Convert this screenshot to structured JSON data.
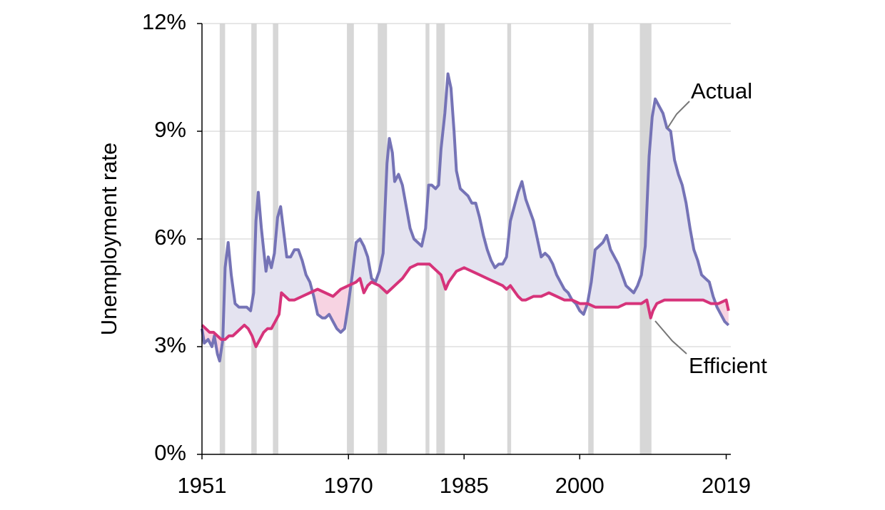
{
  "chart_data": {
    "type": "line",
    "ylabel": "Unemployment rate",
    "xlim": [
      1951,
      2019.6
    ],
    "ylim": [
      0,
      12
    ],
    "xticks": [
      1951,
      1970,
      1985,
      2000,
      2019
    ],
    "yticks": [
      {
        "value": 0,
        "label": "0%"
      },
      {
        "value": 3,
        "label": "3%"
      },
      {
        "value": 6,
        "label": "6%"
      },
      {
        "value": 9,
        "label": "9%"
      },
      {
        "value": 12,
        "label": "12%"
      }
    ],
    "grid": true,
    "recession_color": "#d7d7d7",
    "recessions": [
      [
        1953.3,
        1954.0
      ],
      [
        1957.4,
        1958.1
      ],
      [
        1960.2,
        1960.9
      ],
      [
        1969.8,
        1970.7
      ],
      [
        1973.8,
        1975.0
      ],
      [
        1980.0,
        1980.5
      ],
      [
        1981.4,
        1982.5
      ],
      [
        1990.6,
        1991.1
      ],
      [
        2001.1,
        2001.8
      ],
      [
        2007.8,
        2009.3
      ]
    ],
    "series": [
      {
        "name": "Actual",
        "color": "#7573b6",
        "fill": "#e4e3f0",
        "x": [
          1951.0,
          1951.3,
          1951.8,
          1952.3,
          1952.6,
          1953.0,
          1953.3,
          1953.7,
          1954.0,
          1954.4,
          1954.8,
          1955.3,
          1955.8,
          1956.3,
          1956.8,
          1957.3,
          1957.7,
          1958.0,
          1958.3,
          1958.7,
          1959.0,
          1959.3,
          1959.6,
          1960.0,
          1960.4,
          1960.8,
          1961.2,
          1961.6,
          1962.0,
          1962.5,
          1963.0,
          1963.5,
          1964.0,
          1964.5,
          1965.0,
          1965.5,
          1966.0,
          1966.6,
          1967.0,
          1967.5,
          1968.0,
          1968.5,
          1969.0,
          1969.5,
          1970.0,
          1970.5,
          1971.0,
          1971.5,
          1972.0,
          1972.5,
          1973.0,
          1973.5,
          1974.0,
          1974.5,
          1975.0,
          1975.3,
          1975.7,
          1976.0,
          1976.5,
          1977.0,
          1977.5,
          1978.0,
          1978.5,
          1979.0,
          1979.5,
          1980.0,
          1980.4,
          1980.8,
          1981.3,
          1981.7,
          1982.0,
          1982.5,
          1982.9,
          1983.3,
          1983.7,
          1984.0,
          1984.5,
          1985.0,
          1985.5,
          1986.0,
          1986.5,
          1987.0,
          1987.5,
          1988.0,
          1988.5,
          1989.0,
          1989.5,
          1990.0,
          1990.5,
          1991.0,
          1991.5,
          1992.0,
          1992.5,
          1993.0,
          1993.5,
          1994.0,
          1994.5,
          1995.0,
          1995.5,
          1996.0,
          1996.5,
          1997.0,
          1997.5,
          1998.0,
          1998.5,
          1999.0,
          1999.5,
          2000.0,
          2000.5,
          2001.0,
          2001.5,
          2002.0,
          2002.5,
          2003.0,
          2003.5,
          2004.0,
          2004.5,
          2005.0,
          2005.5,
          2006.0,
          2006.5,
          2007.0,
          2007.5,
          2008.0,
          2008.5,
          2009.0,
          2009.4,
          2009.8,
          2010.3,
          2010.8,
          2011.3,
          2011.8,
          2012.3,
          2012.8,
          2013.3,
          2013.8,
          2014.3,
          2014.8,
          2015.3,
          2015.8,
          2016.3,
          2016.8,
          2017.3,
          2017.8,
          2018.3,
          2018.8,
          2019.3
        ],
        "values": [
          3.5,
          3.1,
          3.2,
          3.0,
          3.3,
          2.8,
          2.6,
          3.2,
          5.2,
          5.9,
          5.0,
          4.2,
          4.1,
          4.1,
          4.1,
          4.0,
          4.5,
          6.5,
          7.3,
          6.3,
          5.7,
          5.1,
          5.5,
          5.2,
          5.6,
          6.6,
          6.9,
          6.2,
          5.5,
          5.5,
          5.7,
          5.7,
          5.4,
          5.0,
          4.8,
          4.4,
          3.9,
          3.8,
          3.8,
          3.9,
          3.7,
          3.5,
          3.4,
          3.5,
          4.2,
          5.0,
          5.9,
          6.0,
          5.8,
          5.5,
          4.9,
          4.8,
          5.1,
          5.6,
          8.1,
          8.8,
          8.4,
          7.6,
          7.8,
          7.5,
          6.9,
          6.3,
          6.0,
          5.9,
          5.8,
          6.3,
          7.5,
          7.5,
          7.4,
          7.5,
          8.5,
          9.5,
          10.6,
          10.2,
          9.0,
          7.9,
          7.4,
          7.3,
          7.2,
          7.0,
          7.0,
          6.6,
          6.1,
          5.7,
          5.4,
          5.2,
          5.3,
          5.3,
          5.5,
          6.5,
          6.9,
          7.3,
          7.6,
          7.1,
          6.8,
          6.5,
          6.0,
          5.5,
          5.6,
          5.5,
          5.3,
          5.0,
          4.8,
          4.6,
          4.5,
          4.3,
          4.2,
          4.0,
          3.9,
          4.2,
          4.8,
          5.7,
          5.8,
          5.9,
          6.1,
          5.7,
          5.5,
          5.3,
          5.0,
          4.7,
          4.6,
          4.5,
          4.7,
          5.0,
          5.8,
          8.3,
          9.4,
          9.9,
          9.7,
          9.5,
          9.1,
          9.0,
          8.2,
          7.8,
          7.5,
          7.0,
          6.3,
          5.7,
          5.4,
          5.0,
          4.9,
          4.8,
          4.4,
          4.1,
          3.9,
          3.7,
          3.6
        ]
      },
      {
        "name": "Efficient",
        "color": "#d6337a",
        "fill": "#f7d3e2",
        "x": [
          1951.0,
          1951.5,
          1952.0,
          1952.5,
          1953.0,
          1953.5,
          1954.0,
          1954.5,
          1955.0,
          1955.5,
          1956.0,
          1956.5,
          1957.0,
          1957.5,
          1958.0,
          1958.5,
          1959.0,
          1959.5,
          1960.0,
          1960.5,
          1961.0,
          1961.3,
          1961.8,
          1962.3,
          1963.0,
          1964.0,
          1965.0,
          1966.0,
          1967.0,
          1968.0,
          1968.5,
          1969.0,
          1970.0,
          1971.0,
          1971.5,
          1972.0,
          1972.5,
          1973.0,
          1974.0,
          1975.0,
          1975.5,
          1976.0,
          1977.0,
          1978.0,
          1979.0,
          1980.0,
          1980.5,
          1981.0,
          1982.0,
          1982.6,
          1983.0,
          1984.0,
          1985.0,
          1986.0,
          1987.0,
          1988.0,
          1989.0,
          1990.0,
          1990.5,
          1991.0,
          1992.0,
          1992.5,
          1993.0,
          1994.0,
          1995.0,
          1996.0,
          1997.0,
          1998.0,
          1999.0,
          2000.0,
          2001.0,
          2002.0,
          2003.0,
          2004.0,
          2005.0,
          2006.0,
          2007.0,
          2008.0,
          2008.7,
          2009.2,
          2009.5,
          2010.0,
          2011.0,
          2012.0,
          2013.0,
          2014.0,
          2015.0,
          2016.0,
          2017.0,
          2018.0,
          2019.0,
          2019.3
        ],
        "values": [
          3.6,
          3.5,
          3.4,
          3.4,
          3.3,
          3.2,
          3.2,
          3.3,
          3.3,
          3.4,
          3.5,
          3.6,
          3.5,
          3.3,
          3.0,
          3.2,
          3.4,
          3.5,
          3.5,
          3.7,
          3.9,
          4.5,
          4.4,
          4.3,
          4.3,
          4.4,
          4.5,
          4.6,
          4.5,
          4.4,
          4.5,
          4.6,
          4.7,
          4.8,
          4.9,
          4.5,
          4.7,
          4.8,
          4.7,
          4.5,
          4.6,
          4.7,
          4.9,
          5.2,
          5.3,
          5.3,
          5.3,
          5.2,
          5.0,
          4.6,
          4.8,
          5.1,
          5.2,
          5.1,
          5.0,
          4.9,
          4.8,
          4.7,
          4.6,
          4.7,
          4.4,
          4.3,
          4.3,
          4.4,
          4.4,
          4.5,
          4.4,
          4.3,
          4.3,
          4.2,
          4.2,
          4.1,
          4.1,
          4.1,
          4.1,
          4.2,
          4.2,
          4.2,
          4.3,
          3.8,
          4.0,
          4.2,
          4.3,
          4.3,
          4.3,
          4.3,
          4.3,
          4.3,
          4.2,
          4.2,
          4.3,
          4.0
        ]
      }
    ]
  }
}
